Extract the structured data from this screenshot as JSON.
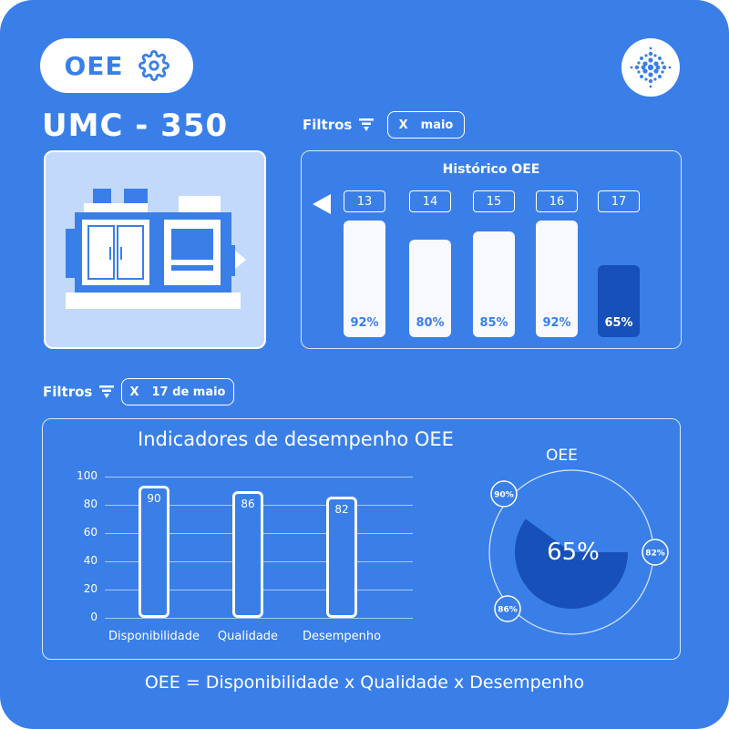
{
  "header": {
    "title": "OEE",
    "settings_icon": "gear-icon",
    "logo_icon": "dots-cluster-icon"
  },
  "machine": {
    "name": "UMC - 350",
    "image_icon": "cnc-machine-icon"
  },
  "historico": {
    "filter_label": "Filtros",
    "filter_icon": "filter-funnel-icon",
    "chip_x": "X",
    "chip_value": "maio",
    "title": "Histórico OEE",
    "prev_icon": "triangle-left-icon",
    "days": [
      {
        "day": "13",
        "value": 92,
        "label": "92%"
      },
      {
        "day": "14",
        "value": 80,
        "label": "80%"
      },
      {
        "day": "15",
        "value": 85,
        "label": "85%"
      },
      {
        "day": "16",
        "value": 92,
        "label": "92%"
      },
      {
        "day": "17",
        "value": 65,
        "label": "65%",
        "selected": true
      }
    ]
  },
  "indicadores": {
    "filter_label": "Filtros",
    "chip_x": "X",
    "chip_value": "17 de maio",
    "title": "Indicadores de desempenho OEE",
    "chart_data": {
      "type": "bar",
      "categories": [
        "Disponibilidade",
        "Qualidade",
        "Desempenho"
      ],
      "values": [
        90,
        86,
        82
      ],
      "title": "Indicadores de desempenho OEE",
      "ylim": [
        0,
        100
      ],
      "yticks": [
        "100",
        "80",
        "60",
        "40",
        "20",
        "0"
      ]
    },
    "gauge": {
      "title": "OEE",
      "value": 65,
      "label": "65%",
      "badges": [
        "90%",
        "82%",
        "86%"
      ],
      "fill_color": "#1650b8"
    }
  },
  "formula": "OEE = Disponibilidade x Qualidade x Desempenho",
  "colors": {
    "background": "#3a7fe8",
    "accent_dark": "#1650b8",
    "card_light": "#c3d9fc"
  }
}
